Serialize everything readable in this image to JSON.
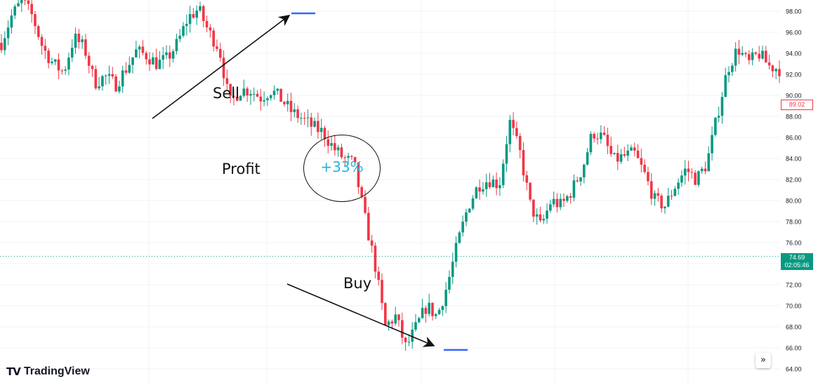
{
  "chart_data": {
    "type": "candlestick",
    "y_axis": {
      "ticks": [
        "98.00",
        "96.00",
        "94.00",
        "92.00",
        "90.00",
        "88.00",
        "86.00",
        "84.00",
        "82.00",
        "80.00",
        "78.00",
        "76.00",
        "74.00",
        "72.00",
        "70.00",
        "68.00",
        "66.00",
        "64.00"
      ],
      "ylim": [
        63.4,
        99.2
      ],
      "side": "right"
    },
    "grid": true,
    "price_path": [
      95,
      97.6,
      99,
      97.5,
      94.5,
      93,
      92.2,
      95.5,
      94.5,
      91.2,
      91.8,
      91,
      92.5,
      94.2,
      93.8,
      93,
      93.5,
      95,
      97.4,
      98.2,
      96,
      94.5,
      89.2,
      90.5,
      90.5,
      89.8,
      90.5,
      89.6,
      88.4,
      87.8,
      87,
      86.5,
      85,
      84,
      83.5,
      78.5,
      74,
      68,
      69,
      66,
      68,
      70,
      69,
      72,
      76,
      79.5,
      81.5,
      82,
      81.5,
      87.5,
      84.5,
      79.5,
      77.5,
      80,
      79.5,
      81,
      83,
      86.5,
      86,
      83.8,
      84.2,
      84.5,
      82.5,
      80,
      79.5,
      81.5,
      83,
      82,
      83.5,
      88,
      92.5,
      94.5,
      93,
      94,
      92.8,
      92.5
    ],
    "levels": [
      {
        "value": 97.8,
        "color": "#3366ff"
      },
      {
        "value": 65.8,
        "color": "#3366ff"
      }
    ],
    "last_price": {
      "value": 89.02,
      "label": "89.02",
      "color": "#f23645"
    },
    "current_price": {
      "value": 74.69,
      "label": "74.69",
      "countdown": "02:05:46",
      "color": "#089981"
    },
    "colors": {
      "up": "#089981",
      "down": "#f23645",
      "grid": "#f0f3fa",
      "axis_text": "#131722"
    }
  },
  "annotations": {
    "sell": "Sell",
    "profit": "Profit",
    "buy": "Buy",
    "profit_pct": "+33%",
    "profit_pct_color": "#26b3d6"
  },
  "branding": {
    "logo_mark": "TV",
    "name": "TradingView"
  },
  "controls": {
    "scroll_icon": "double-chevron-right-icon",
    "scroll_glyph": "»"
  }
}
